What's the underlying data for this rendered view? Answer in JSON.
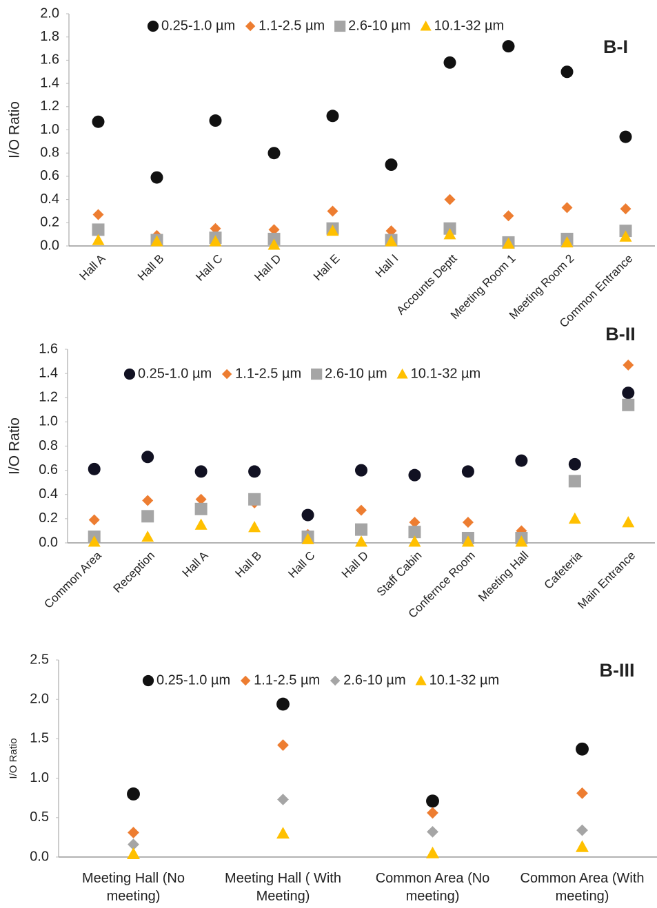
{
  "chart_data": [
    {
      "type": "scatter",
      "title": "B-I",
      "y_label": "I/O Ratio",
      "categories": [
        "Hall A",
        "Hall B",
        "Hall C",
        "Hall D",
        "Hall E",
        "Hall I",
        "Accounts Deptt",
        "Meeting Room 1",
        "Meeting Room 2",
        "Common Entrance"
      ],
      "series": [
        {
          "name": "0.25-1.0 µm",
          "color": "#111111",
          "marker": "circle",
          "values": [
            1.07,
            0.59,
            1.08,
            0.8,
            1.12,
            0.7,
            1.58,
            1.72,
            1.5,
            0.94
          ]
        },
        {
          "name": "1.1-2.5 µm",
          "color": "#ed7d31",
          "marker": "diamond",
          "values": [
            0.27,
            0.09,
            0.15,
            0.14,
            0.3,
            0.13,
            0.4,
            0.26,
            0.33,
            0.32
          ]
        },
        {
          "name": "2.6-10 µm",
          "color": "#a5a5a5",
          "marker": "square",
          "values": [
            0.14,
            0.05,
            0.07,
            0.06,
            0.15,
            0.05,
            0.15,
            0.03,
            0.06,
            0.13
          ]
        },
        {
          "name": "10.1-32 µm",
          "color": "#ffc000",
          "marker": "triangle",
          "values": [
            0.05,
            0.04,
            0.04,
            0.01,
            0.13,
            0.04,
            0.1,
            0.02,
            0.03,
            0.08
          ]
        }
      ],
      "ylim": [
        0,
        2
      ],
      "yticks": [
        {
          "value": 0,
          "label": "0.0"
        },
        0.2,
        0.4,
        0.6,
        0.8,
        {
          "value": 1,
          "label": "1.0"
        },
        1.2,
        1.4,
        1.6,
        1.8,
        {
          "value": 2,
          "label": "2.0"
        }
      ],
      "grid": false
    },
    {
      "type": "scatter",
      "title": "B-II",
      "y_label": "I/O Ratio",
      "categories": [
        "Common Area",
        "Reception",
        "Hall A",
        "Hall B",
        "Hall C",
        "Hall D",
        "Staff Cabin",
        "Confernce Room",
        "Meeting Hall",
        "Cafeteria",
        "Main Entrance"
      ],
      "series": [
        {
          "name": "0.25-1.0 µm",
          "color": "#111122",
          "marker": "circle",
          "values": [
            0.61,
            0.71,
            0.59,
            0.59,
            0.23,
            0.6,
            0.56,
            0.59,
            0.68,
            0.65,
            1.24
          ]
        },
        {
          "name": "1.1-2.5 µm",
          "color": "#ed7d31",
          "marker": "diamond",
          "values": [
            0.19,
            0.35,
            0.36,
            0.33,
            0.07,
            0.27,
            0.17,
            0.17,
            0.1,
            null,
            1.47
          ]
        },
        {
          "name": "2.6-10 µm",
          "color": "#a5a5a5",
          "marker": "square",
          "values": [
            0.05,
            0.22,
            0.28,
            0.36,
            0.05,
            0.11,
            0.09,
            0.04,
            0.04,
            0.51,
            1.14
          ]
        },
        {
          "name": "10.1-32 µm",
          "color": "#ffc000",
          "marker": "triangle",
          "values": [
            0.01,
            0.05,
            0.15,
            0.13,
            0.03,
            0.01,
            0.01,
            0.01,
            0.01,
            0.2,
            0.17
          ]
        }
      ],
      "ylim": [
        0,
        1.6
      ],
      "yticks": [
        {
          "value": 0,
          "label": "0.0"
        },
        0.2,
        0.4,
        0.6,
        0.8,
        {
          "value": 1,
          "label": "1.0"
        },
        1.2,
        1.4,
        1.6
      ],
      "grid": false
    },
    {
      "type": "scatter",
      "title": "B-III",
      "y_label": "I/O Ratio",
      "categories": [
        "Meeting Hall (No meeting)",
        "Meeting Hall ( With Meeting)",
        "Common Area (No meeting)",
        "Common Area (With meeting)"
      ],
      "series": [
        {
          "name": "0.25-1.0 µm",
          "color": "#111111",
          "marker": "circle",
          "values": [
            0.8,
            1.94,
            0.71,
            1.37
          ]
        },
        {
          "name": "1.1-2.5 µm",
          "color": "#ed7d31",
          "marker": "diamond",
          "values": [
            0.31,
            1.42,
            0.56,
            0.81
          ]
        },
        {
          "name": "2.6-10 µm",
          "color": "#a5a5a5",
          "marker": "diamond",
          "values": [
            0.16,
            0.73,
            0.32,
            0.34
          ]
        },
        {
          "name": "10.1-32 µm",
          "color": "#ffc000",
          "marker": "triangle",
          "values": [
            0.04,
            0.3,
            0.05,
            0.13
          ]
        }
      ],
      "ylim": [
        0,
        2.5
      ],
      "yticks": [
        {
          "value": 0,
          "label": "0.0"
        },
        0.5,
        {
          "value": 1,
          "label": "1.0"
        },
        1.5,
        {
          "value": 2,
          "label": "2.0"
        },
        2.5
      ],
      "grid": false
    }
  ]
}
